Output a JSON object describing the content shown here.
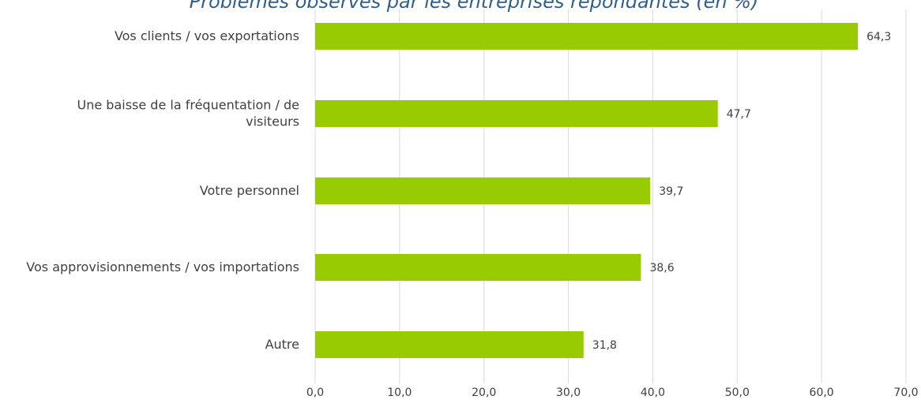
{
  "chart_data": {
    "type": "bar",
    "orientation": "horizontal",
    "title": "Problèmes observés par les entreprises répondantes (en %)",
    "categories": [
      [
        "Vos clients / vos exportations"
      ],
      [
        "Une baisse de la fréquentation / de",
        "visiteurs"
      ],
      [
        "Votre personnel"
      ],
      [
        "Vos approvisionnements / vos importations"
      ],
      [
        "Autre"
      ]
    ],
    "values": [
      64.3,
      47.7,
      39.7,
      38.6,
      31.8
    ],
    "value_labels": [
      "64,3",
      "47,7",
      "39,7",
      "38,6",
      "31,8"
    ],
    "x_ticks": [
      0,
      10,
      20,
      30,
      40,
      50,
      60,
      70
    ],
    "x_tick_labels": [
      "0,0",
      "10,0",
      "20,0",
      "30,0",
      "40,0",
      "50,0",
      "60,0",
      "70,0"
    ],
    "xlim": [
      0,
      70
    ],
    "xlabel": "",
    "ylabel": "",
    "grid": true,
    "legend": "none",
    "colors": {
      "bar": "#99cc00",
      "grid": "#d9d9d9",
      "title": "#2f5f8a",
      "text": "#404040"
    }
  }
}
